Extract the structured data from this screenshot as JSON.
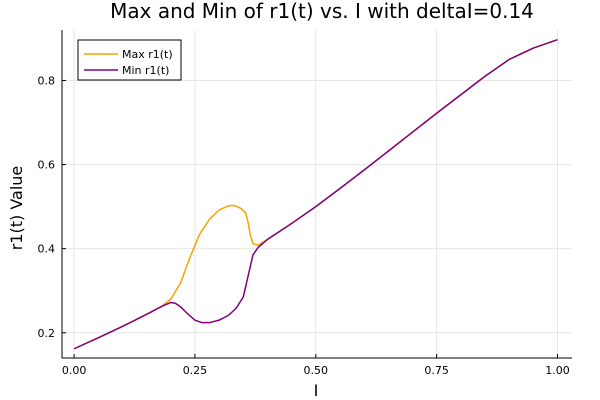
{
  "chart_data": {
    "type": "line",
    "title": "Max and Min of r1(t) vs. I with deltaI=0.14",
    "xlabel": "I",
    "ylabel": "r1(t) Value",
    "xlim": [
      -0.025,
      1.03
    ],
    "ylim": [
      0.14,
      0.92
    ],
    "xticks": [
      0.0,
      0.25,
      0.5,
      0.75,
      1.0
    ],
    "xtick_labels": [
      "0.00",
      "0.25",
      "0.50",
      "0.75",
      "1.00"
    ],
    "yticks": [
      0.2,
      0.4,
      0.6,
      0.8
    ],
    "ytick_labels": [
      "0.2",
      "0.4",
      "0.6",
      "0.8"
    ],
    "grid": true,
    "legend_position": "top-left",
    "series": [
      {
        "name": "Max r1(t)",
        "color": "#F5A300",
        "x": [
          0.0,
          0.05,
          0.1,
          0.15,
          0.18,
          0.2,
          0.22,
          0.24,
          0.26,
          0.28,
          0.3,
          0.32,
          0.33,
          0.345,
          0.355,
          0.36,
          0.365,
          0.37,
          0.38,
          0.4,
          0.45,
          0.5,
          0.55,
          0.6,
          0.65,
          0.7,
          0.75,
          0.8,
          0.85,
          0.9,
          0.95,
          1.0
        ],
        "y": [
          0.162,
          0.188,
          0.215,
          0.244,
          0.262,
          0.28,
          0.318,
          0.38,
          0.435,
          0.47,
          0.492,
          0.502,
          0.503,
          0.496,
          0.485,
          0.462,
          0.43,
          0.412,
          0.408,
          0.422,
          0.46,
          0.5,
          0.543,
          0.587,
          0.632,
          0.677,
          0.722,
          0.766,
          0.81,
          0.85,
          0.877,
          0.897
        ]
      },
      {
        "name": "Min r1(t)",
        "color": "#800080",
        "x": [
          0.0,
          0.05,
          0.1,
          0.15,
          0.18,
          0.2,
          0.21,
          0.22,
          0.235,
          0.25,
          0.265,
          0.28,
          0.3,
          0.32,
          0.335,
          0.35,
          0.36,
          0.37,
          0.38,
          0.4,
          0.45,
          0.5,
          0.55,
          0.6,
          0.65,
          0.7,
          0.75,
          0.8,
          0.85,
          0.9,
          0.95,
          1.0
        ],
        "y": [
          0.162,
          0.188,
          0.215,
          0.244,
          0.262,
          0.272,
          0.27,
          0.262,
          0.245,
          0.23,
          0.224,
          0.224,
          0.23,
          0.242,
          0.258,
          0.285,
          0.335,
          0.385,
          0.402,
          0.422,
          0.46,
          0.5,
          0.543,
          0.587,
          0.632,
          0.677,
          0.722,
          0.766,
          0.81,
          0.85,
          0.877,
          0.897
        ]
      }
    ]
  }
}
